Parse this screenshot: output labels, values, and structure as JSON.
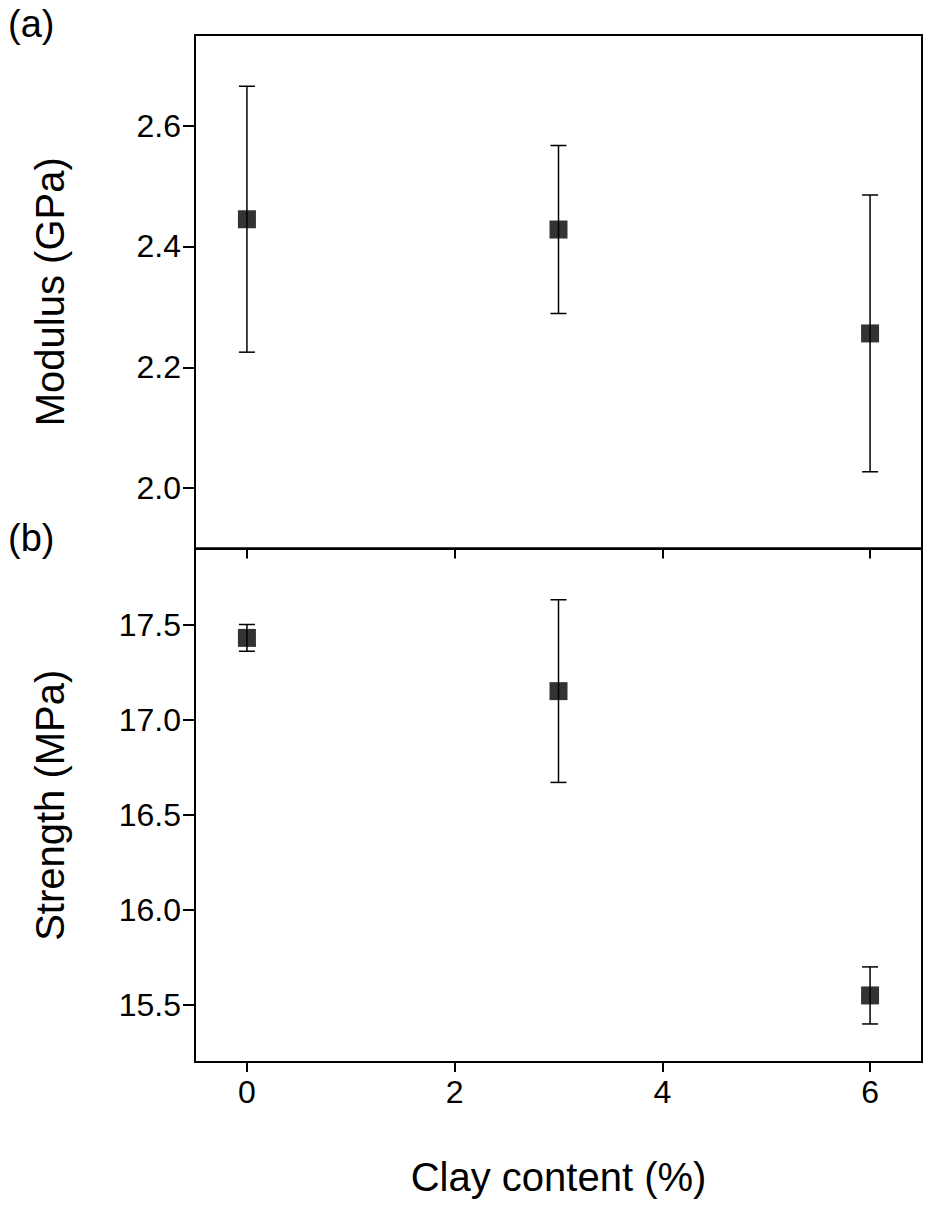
{
  "chart_data": [
    {
      "type": "scatter",
      "annotation": "(a)",
      "y_label": "Modulus (GPa)",
      "x": [
        0,
        3,
        6
      ],
      "values": [
        2.445,
        2.428,
        2.256
      ],
      "errors": [
        0.22,
        0.139,
        0.229
      ],
      "color": "#000000",
      "marker": "square",
      "xlim": [
        -0.5,
        6.5
      ],
      "xticks": [
        0,
        2,
        4,
        6
      ],
      "ylim": [
        1.9,
        2.75
      ],
      "yticks": [
        {
          "value": 2,
          "label": "2.0"
        },
        2.2,
        2.4,
        2.6
      ],
      "tick_labels": "y"
    },
    {
      "type": "scatter",
      "annotation": "(b)",
      "y_label": "Strength (MPa)",
      "x_label": "Clay content (%)",
      "x": [
        0,
        3,
        6
      ],
      "values": [
        17.43,
        17.15,
        15.55
      ],
      "errors": [
        0.07,
        0.48,
        0.15
      ],
      "color": "#000000",
      "marker": "square",
      "xlim": [
        -0.5,
        6.5
      ],
      "xticks": [
        0,
        2,
        4,
        6
      ],
      "ylim": [
        15.2,
        17.9
      ],
      "yticks": [
        15.5,
        {
          "value": 16,
          "label": "16.0"
        },
        16.5,
        {
          "value": 17,
          "label": "17.0"
        },
        17.5
      ]
    }
  ]
}
